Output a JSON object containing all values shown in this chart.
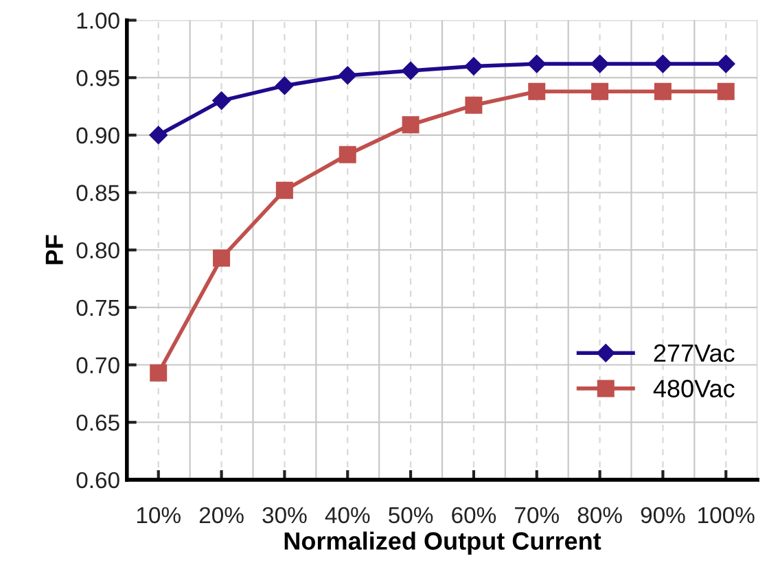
{
  "chart_data": {
    "type": "line",
    "xlabel": "Normalized Output Current",
    "ylabel": "PF",
    "categories": [
      "10%",
      "20%",
      "30%",
      "40%",
      "50%",
      "60%",
      "70%",
      "80%",
      "90%",
      "100%"
    ],
    "series": [
      {
        "name": "277Vac",
        "color": "#1f0a8c",
        "marker": "diamond",
        "values": [
          0.9,
          0.93,
          0.943,
          0.952,
          0.956,
          0.96,
          0.962,
          0.962,
          0.962,
          0.962
        ]
      },
      {
        "name": "480Vac",
        "color": "#c0504d",
        "marker": "square",
        "values": [
          0.693,
          0.793,
          0.852,
          0.883,
          0.909,
          0.926,
          0.938,
          0.938,
          0.938,
          0.938
        ]
      }
    ],
    "ylim": [
      0.6,
      1.0
    ],
    "yticks": [
      {
        "value": 0.6,
        "label": "0.60"
      },
      {
        "value": 0.65,
        "label": "0.65"
      },
      {
        "value": 0.7,
        "label": "0.70"
      },
      {
        "value": 0.75,
        "label": "0.75"
      },
      {
        "value": 0.8,
        "label": "0.80"
      },
      {
        "value": 0.85,
        "label": "0.85"
      },
      {
        "value": 0.9,
        "label": "0.90"
      },
      {
        "value": 0.95,
        "label": "0.95"
      },
      {
        "value": 1.0,
        "label": "1.00"
      }
    ],
    "grid": true,
    "legend": "lower right",
    "line_style": "solid"
  }
}
